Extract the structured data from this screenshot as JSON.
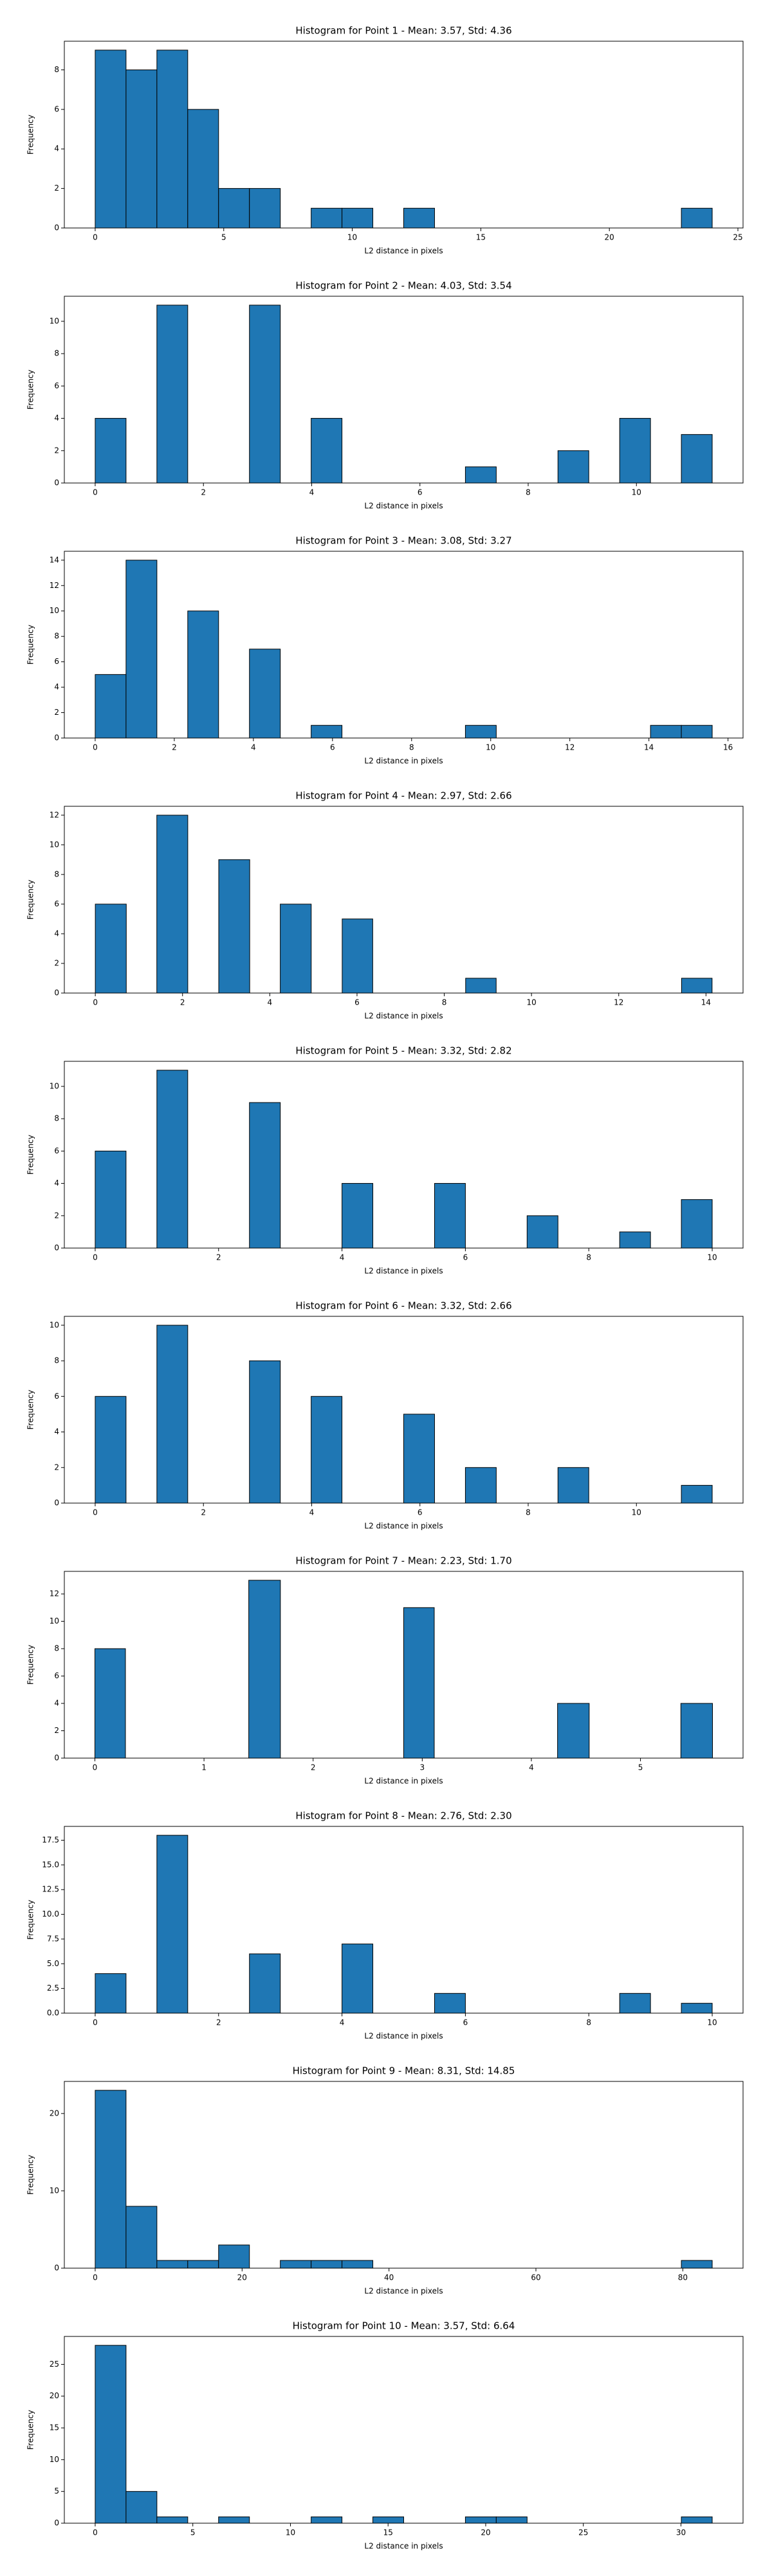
{
  "chart_data": [
    {
      "type": "histogram",
      "title": "Histogram for Point 1 - Mean: 3.57, Std: 4.36",
      "xlabel": "L2 distance in pixels",
      "ylabel": "Frequency",
      "color": "#1f77b4",
      "bins": [
        0,
        1.2,
        2.4,
        3.6,
        4.8,
        6,
        7.2,
        8.4,
        9.6,
        10.8,
        12,
        13.2,
        14.4,
        15.6,
        16.8,
        18,
        19.2,
        20.4,
        21.6,
        22.8,
        24
      ],
      "values": [
        9,
        8,
        9,
        6,
        2,
        2,
        0,
        1,
        1,
        0,
        1,
        0,
        0,
        0,
        0,
        0,
        0,
        0,
        0,
        1
      ],
      "xlim": [
        -1.2,
        25.2
      ],
      "xticks": [
        0,
        5,
        10,
        15,
        20,
        25
      ],
      "ylim": [
        0,
        9.45
      ],
      "yticks": [
        0,
        2,
        4,
        6,
        8
      ]
    },
    {
      "type": "histogram",
      "title": "Histogram for Point 2 - Mean: 4.03, Std: 3.54",
      "xlabel": "L2 distance in pixels",
      "ylabel": "Frequency",
      "color": "#1f77b4",
      "bins": [
        0,
        0.57,
        1.14,
        1.71,
        2.28,
        2.85,
        3.42,
        3.99,
        4.56,
        5.13,
        5.7,
        6.27,
        6.84,
        7.41,
        7.98,
        8.55,
        9.12,
        9.69,
        10.26,
        10.83,
        11.4
      ],
      "values": [
        4,
        0,
        11,
        0,
        0,
        11,
        0,
        4,
        0,
        0,
        0,
        0,
        1,
        0,
        0,
        2,
        0,
        4,
        0,
        3
      ],
      "xlim": [
        -0.57,
        11.97
      ],
      "xticks": [
        0,
        2,
        4,
        6,
        8,
        10
      ],
      "ylim": [
        0,
        11.55
      ],
      "yticks": [
        0,
        2,
        4,
        6,
        8,
        10
      ]
    },
    {
      "type": "histogram",
      "title": "Histogram for Point 3 - Mean: 3.08, Std: 3.27",
      "xlabel": "L2 distance in pixels",
      "ylabel": "Frequency",
      "color": "#1f77b4",
      "bins": [
        0,
        0.78,
        1.56,
        2.34,
        3.12,
        3.9,
        4.68,
        5.46,
        6.24,
        7.02,
        7.8,
        8.58,
        9.36,
        10.14,
        10.92,
        11.7,
        12.48,
        13.26,
        14.04,
        14.82,
        15.6
      ],
      "values": [
        5,
        14,
        0,
        10,
        0,
        7,
        0,
        1,
        0,
        0,
        0,
        0,
        1,
        0,
        0,
        0,
        0,
        0,
        1,
        1
      ],
      "xlim": [
        -0.78,
        16.38
      ],
      "xticks": [
        0,
        2,
        4,
        6,
        8,
        10,
        12,
        14,
        16
      ],
      "ylim": [
        0,
        14.7
      ],
      "yticks": [
        0,
        2,
        4,
        6,
        8,
        10,
        12,
        14
      ]
    },
    {
      "type": "histogram",
      "title": "Histogram for Point 4 - Mean: 2.97, Std: 2.66",
      "xlabel": "L2 distance in pixels",
      "ylabel": "Frequency",
      "color": "#1f77b4",
      "bins": [
        0,
        0.71,
        1.41,
        2.12,
        2.83,
        3.54,
        4.24,
        4.95,
        5.66,
        6.36,
        7.07,
        7.78,
        8.49,
        9.19,
        9.9,
        10.61,
        11.31,
        12.02,
        12.73,
        13.44,
        14.14
      ],
      "values": [
        6,
        0,
        12,
        0,
        9,
        0,
        6,
        0,
        5,
        0,
        0,
        0,
        1,
        0,
        0,
        0,
        0,
        0,
        0,
        1
      ],
      "xlim": [
        -0.71,
        14.85
      ],
      "xticks": [
        0,
        2,
        4,
        6,
        8,
        10,
        12,
        14
      ],
      "ylim": [
        0,
        12.6
      ],
      "yticks": [
        0,
        2,
        4,
        6,
        8,
        10,
        12
      ]
    },
    {
      "type": "histogram",
      "title": "Histogram for Point 5 - Mean: 3.32, Std: 2.82",
      "xlabel": "L2 distance in pixels",
      "ylabel": "Frequency",
      "color": "#1f77b4",
      "bins": [
        0,
        0.5,
        1,
        1.5,
        2,
        2.5,
        3,
        3.5,
        4,
        4.5,
        5,
        5.5,
        6,
        6.5,
        7,
        7.5,
        8,
        8.5,
        9,
        9.5,
        10
      ],
      "values": [
        6,
        0,
        11,
        0,
        0,
        9,
        0,
        0,
        4,
        0,
        0,
        4,
        0,
        0,
        2,
        0,
        0,
        1,
        0,
        3
      ],
      "xlim": [
        -0.5,
        10.5
      ],
      "xticks": [
        0,
        2,
        4,
        6,
        8,
        10
      ],
      "ylim": [
        0,
        11.55
      ],
      "yticks": [
        0,
        2,
        4,
        6,
        8,
        10
      ]
    },
    {
      "type": "histogram",
      "title": "Histogram for Point 6 - Mean: 3.32, Std: 2.66",
      "xlabel": "L2 distance in pixels",
      "ylabel": "Frequency",
      "color": "#1f77b4",
      "bins": [
        0,
        0.57,
        1.14,
        1.71,
        2.28,
        2.85,
        3.42,
        3.99,
        4.56,
        5.13,
        5.7,
        6.27,
        6.84,
        7.41,
        7.98,
        8.55,
        9.12,
        9.69,
        10.26,
        10.83,
        11.4
      ],
      "values": [
        6,
        0,
        10,
        0,
        0,
        8,
        0,
        6,
        0,
        0,
        5,
        0,
        2,
        0,
        0,
        2,
        0,
        0,
        0,
        1
      ],
      "xlim": [
        -0.57,
        11.97
      ],
      "xticks": [
        0,
        2,
        4,
        6,
        8,
        10
      ],
      "ylim": [
        0,
        10.5
      ],
      "yticks": [
        0,
        2,
        4,
        6,
        8,
        10
      ]
    },
    {
      "type": "histogram",
      "title": "Histogram for Point 7 - Mean: 2.23, Std: 1.70",
      "xlabel": "L2 distance in pixels",
      "ylabel": "Frequency",
      "color": "#1f77b4",
      "bins": [
        0,
        0.28,
        0.57,
        0.85,
        1.13,
        1.41,
        1.7,
        1.98,
        2.26,
        2.55,
        2.83,
        3.11,
        3.39,
        3.68,
        3.96,
        4.24,
        4.53,
        4.81,
        5.09,
        5.37,
        5.66
      ],
      "values": [
        8,
        0,
        0,
        0,
        0,
        13,
        0,
        0,
        0,
        0,
        11,
        0,
        0,
        0,
        0,
        4,
        0,
        0,
        0,
        4
      ],
      "xlim": [
        -0.28,
        5.94
      ],
      "xticks": [
        0,
        1,
        2,
        3,
        4,
        5
      ],
      "ylim": [
        0,
        13.65
      ],
      "yticks": [
        0,
        2,
        4,
        6,
        8,
        10,
        12
      ]
    },
    {
      "type": "histogram",
      "title": "Histogram for Point 8 - Mean: 2.76, Std: 2.30",
      "xlabel": "L2 distance in pixels",
      "ylabel": "Frequency",
      "color": "#1f77b4",
      "bins": [
        0,
        0.5,
        1,
        1.5,
        2,
        2.5,
        3,
        3.5,
        4,
        4.5,
        5,
        5.5,
        6,
        6.5,
        7,
        7.5,
        8,
        8.5,
        9,
        9.5,
        10
      ],
      "values": [
        4,
        0,
        18,
        0,
        0,
        6,
        0,
        0,
        7,
        0,
        0,
        2,
        0,
        0,
        0,
        0,
        0,
        2,
        0,
        1
      ],
      "xlim": [
        -0.5,
        10.5
      ],
      "xticks": [
        0,
        2,
        4,
        6,
        8,
        10
      ],
      "ylim": [
        0,
        18.9
      ],
      "yticks": [
        {
          "value": 0,
          "label": "0.0"
        },
        {
          "value": 2.5,
          "label": "2.5"
        },
        {
          "value": 5,
          "label": "5.0"
        },
        {
          "value": 7.5,
          "label": "7.5"
        },
        {
          "value": 10,
          "label": "10.0"
        },
        {
          "value": 12.5,
          "label": "12.5"
        },
        {
          "value": 15,
          "label": "15.0"
        },
        {
          "value": 17.5,
          "label": "17.5"
        }
      ]
    },
    {
      "type": "histogram",
      "title": "Histogram for Point 9 - Mean: 8.31, Std: 14.85",
      "xlabel": "L2 distance in pixels",
      "ylabel": "Frequency",
      "color": "#1f77b4",
      "bins": [
        0,
        4.2,
        8.4,
        12.6,
        16.8,
        21,
        25.2,
        29.4,
        33.6,
        37.8,
        42,
        46.2,
        50.4,
        54.6,
        58.8,
        63,
        67.2,
        71.4,
        75.6,
        79.8,
        84
      ],
      "values": [
        23,
        8,
        1,
        1,
        3,
        0,
        1,
        1,
        1,
        0,
        0,
        0,
        0,
        0,
        0,
        0,
        0,
        0,
        0,
        1
      ],
      "xlim": [
        -4.2,
        88.2
      ],
      "xticks": [
        0,
        20,
        40,
        60,
        80
      ],
      "ylim": [
        0,
        24.15
      ],
      "yticks": [
        0,
        10,
        20
      ]
    },
    {
      "type": "histogram",
      "title": "Histogram for Point 10 - Mean: 3.57, Std: 6.64",
      "xlabel": "L2 distance in pixels",
      "ylabel": "Frequency",
      "color": "#1f77b4",
      "bins": [
        0,
        1.58,
        3.16,
        4.74,
        6.32,
        7.9,
        9.48,
        11.06,
        12.64,
        14.22,
        15.8,
        17.38,
        18.96,
        20.54,
        22.12,
        23.7,
        25.28,
        26.86,
        28.44,
        30.02,
        31.6
      ],
      "values": [
        28,
        5,
        1,
        0,
        1,
        0,
        0,
        1,
        0,
        1,
        0,
        0,
        1,
        1,
        0,
        0,
        0,
        0,
        0,
        1
      ],
      "xlim": [
        -1.58,
        33.18
      ],
      "xticks": [
        0,
        5,
        10,
        15,
        20,
        25,
        30
      ],
      "ylim": [
        0,
        29.4
      ],
      "yticks": [
        0,
        5,
        10,
        15,
        20,
        25
      ]
    }
  ]
}
